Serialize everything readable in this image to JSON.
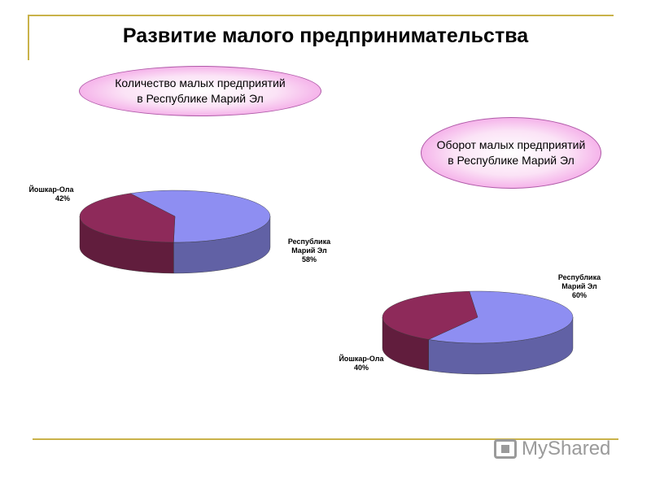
{
  "title": "Развитие малого предпринимательства",
  "watermark": "MyShared",
  "chart_data": [
    {
      "type": "pie",
      "title_lines": [
        "Количество малых предприятий",
        "в Республике Марий Эл"
      ],
      "slices": [
        {
          "label_lines": [
            "Республика",
            "Марий Эл"
          ],
          "pct_text": "58%",
          "value": 58,
          "color": "#8e8ef2"
        },
        {
          "label_lines": [
            "Йошкар-Ола"
          ],
          "pct_text": "42%",
          "value": 42,
          "color": "#8e2a5a"
        }
      ]
    },
    {
      "type": "pie",
      "title_lines": [
        "Оборот малых предприятий",
        "в Республике Марий Эл"
      ],
      "slices": [
        {
          "label_lines": [
            "Республика",
            "Марий Эл"
          ],
          "pct_text": "60%",
          "value": 60,
          "color": "#8e8ef2"
        },
        {
          "label_lines": [
            "Йошкар-Ола"
          ],
          "pct_text": "40%",
          "value": 40,
          "color": "#8e2a5a"
        }
      ]
    }
  ]
}
